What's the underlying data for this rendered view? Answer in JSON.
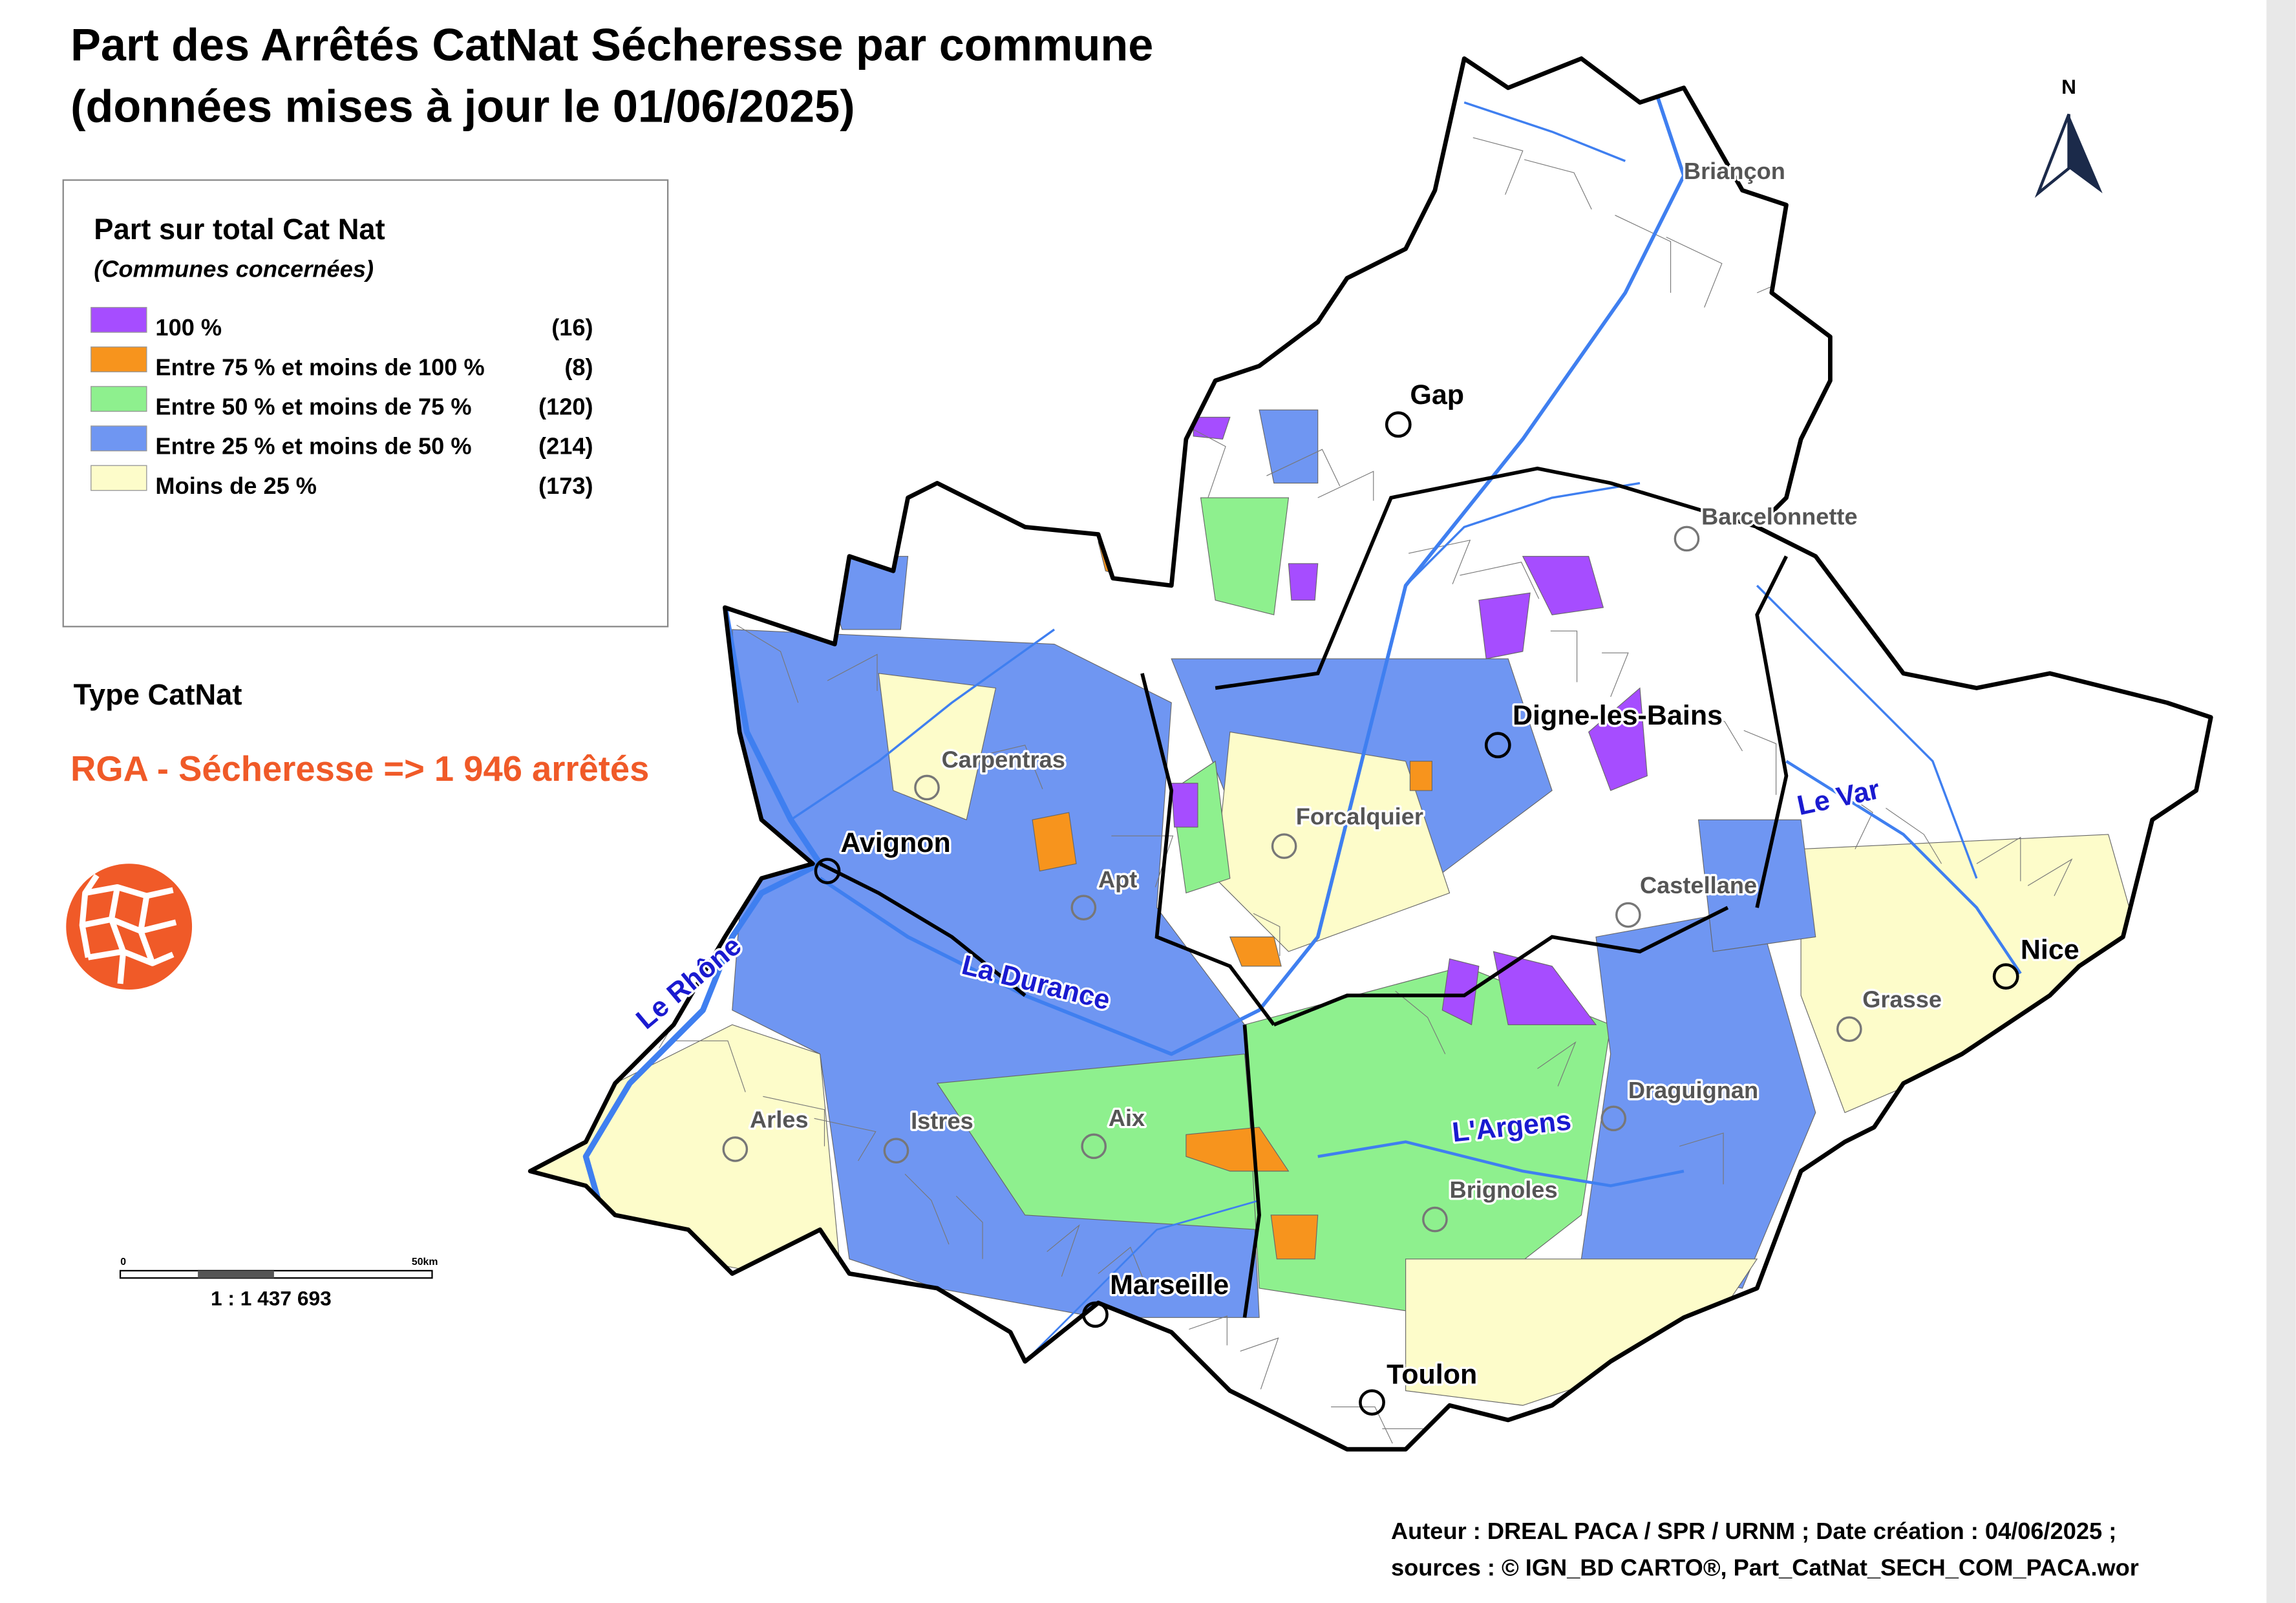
{
  "title_lines": [
    "Part des Arrêtés CatNat Sécheresse par commune",
    "(données mises à jour le 01/06/2025)"
  ],
  "legend": {
    "title": "Part sur total Cat Nat",
    "subtitle": "(Communes concernées)",
    "items": [
      {
        "label": "100 %",
        "count": "(16)",
        "color": "#a64dff"
      },
      {
        "label": "Entre 75 % et moins de 100 %",
        "count": "(8)",
        "color": "#f7941d"
      },
      {
        "label": "Entre 50 % et moins de 75 %",
        "count": "(120)",
        "color": "#8ef08e"
      },
      {
        "label": "Entre 25 % et moins de 50 %",
        "count": "(214)",
        "color": "#6f96f2"
      },
      {
        "label": "Moins de 25 %",
        "count": "(173)",
        "color": "#fdfcca"
      }
    ]
  },
  "catnat_type": {
    "heading": "Type CatNat",
    "value": "RGA - Sécheresse => 1 946 arrêtés"
  },
  "north": "N",
  "scale": {
    "start": "0",
    "end": "50km",
    "ratio": "1 : 1 437 693"
  },
  "cities": [
    "Briançon",
    "Gap",
    "Barcelonnette",
    "Digne-les-Bains",
    "Carpentras",
    "Forcalquier",
    "Avignon",
    "Apt",
    "Castellane",
    "Nice",
    "Grasse",
    "Draguignan",
    "Arles",
    "Istres",
    "Aix",
    "Brignoles",
    "Marseille",
    "Toulon"
  ],
  "rivers": [
    "Le Rhône",
    "La Durance",
    "L'Argens",
    "Le Var"
  ],
  "credits": [
    "Auteur : DREAL PACA / SPR / URNM ; Date création : 04/06/2025 ;",
    "sources : © IGN_BD CARTO®, Part_CatNat_SECH_COM_PACA.wor"
  ]
}
